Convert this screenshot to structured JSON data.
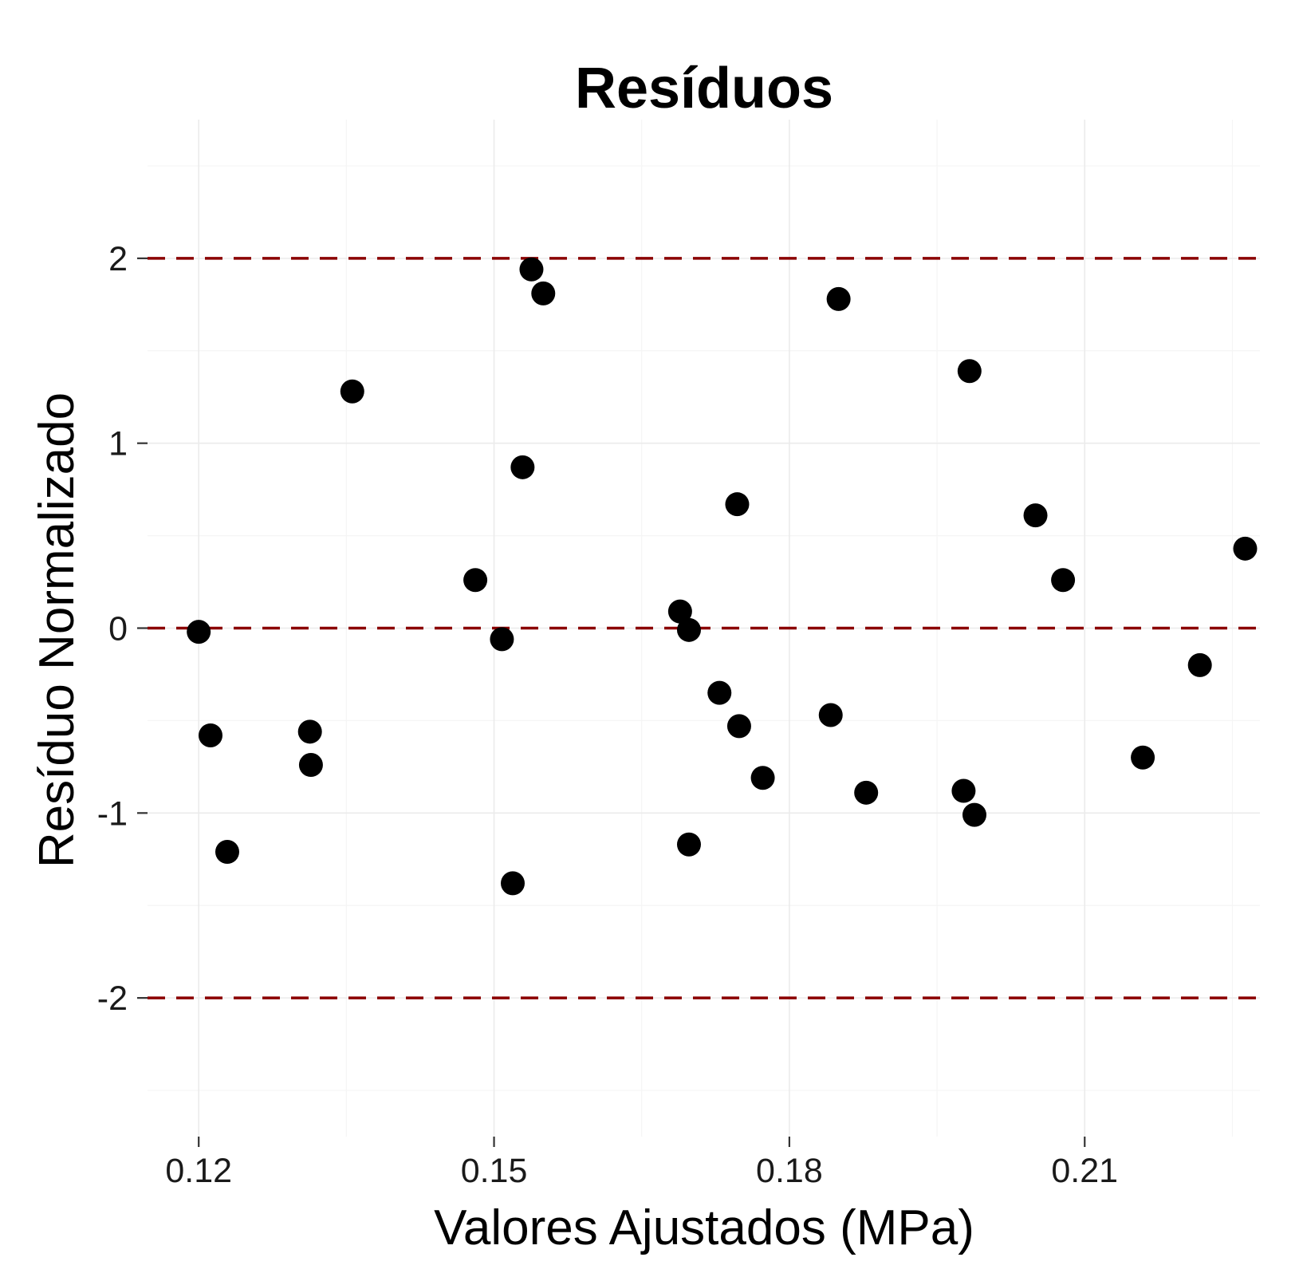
{
  "chart_data": {
    "type": "scatter",
    "title": "Resíduos",
    "xlabel": "Valores Ajustados (MPa)",
    "ylabel": "Resíduo Normalizado",
    "xlim": [
      0.1148,
      0.2278
    ],
    "ylim": [
      -2.75,
      2.75
    ],
    "x_ticks": [
      0.12,
      0.15,
      0.18,
      0.21
    ],
    "x_tick_labels": [
      "0.12",
      "0.15",
      "0.18",
      "0.21"
    ],
    "y_ticks": [
      -2,
      -1,
      0,
      1,
      2
    ],
    "y_tick_labels": [
      "-2",
      "-1",
      "0",
      "1",
      "2"
    ],
    "grid": true,
    "reference_lines": [
      {
        "y": 2,
        "style": "dashed",
        "color": "#8b0000"
      },
      {
        "y": 0,
        "style": "dashed",
        "color": "#8b0000"
      },
      {
        "y": -2,
        "style": "dashed",
        "color": "#8b0000"
      }
    ],
    "point_color": "#000000",
    "points": [
      {
        "x": 0.12,
        "y": -0.02
      },
      {
        "x": 0.1212,
        "y": -0.58
      },
      {
        "x": 0.1229,
        "y": -1.21
      },
      {
        "x": 0.1313,
        "y": -0.56
      },
      {
        "x": 0.1314,
        "y": -0.74
      },
      {
        "x": 0.1356,
        "y": 1.28
      },
      {
        "x": 0.1481,
        "y": 0.26
      },
      {
        "x": 0.1508,
        "y": -0.06
      },
      {
        "x": 0.1519,
        "y": -1.38
      },
      {
        "x": 0.1529,
        "y": 0.87
      },
      {
        "x": 0.1538,
        "y": 1.94
      },
      {
        "x": 0.155,
        "y": 1.81
      },
      {
        "x": 0.1689,
        "y": 0.09
      },
      {
        "x": 0.1698,
        "y": -0.01
      },
      {
        "x": 0.1698,
        "y": -1.17
      },
      {
        "x": 0.1729,
        "y": -0.35
      },
      {
        "x": 0.1747,
        "y": 0.67
      },
      {
        "x": 0.1749,
        "y": -0.53
      },
      {
        "x": 0.1773,
        "y": -0.81
      },
      {
        "x": 0.1842,
        "y": -0.47
      },
      {
        "x": 0.185,
        "y": 1.78
      },
      {
        "x": 0.1878,
        "y": -0.89
      },
      {
        "x": 0.1977,
        "y": -0.88
      },
      {
        "x": 0.1983,
        "y": 1.39
      },
      {
        "x": 0.1988,
        "y": -1.01
      },
      {
        "x": 0.205,
        "y": 0.61
      },
      {
        "x": 0.2078,
        "y": 0.26
      },
      {
        "x": 0.2159,
        "y": -0.7
      },
      {
        "x": 0.2217,
        "y": -0.2
      },
      {
        "x": 0.2263,
        "y": 0.43
      }
    ]
  }
}
